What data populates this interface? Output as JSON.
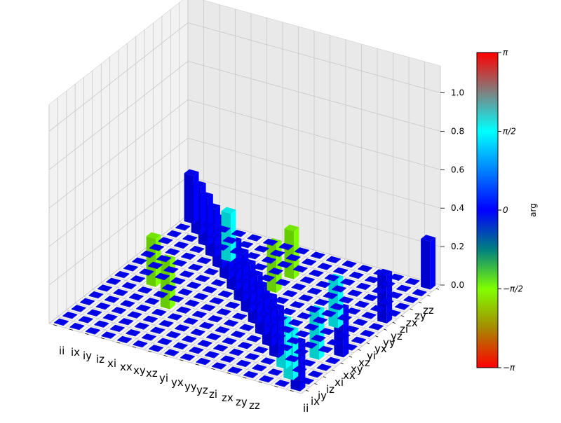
{
  "chart_data": {
    "type": "bar3d",
    "x_categories": [
      "ii",
      "ix",
      "iy",
      "iz",
      "xi",
      "xx",
      "xy",
      "xz",
      "yi",
      "yx",
      "yy",
      "yz",
      "zi",
      "zx",
      "zy",
      "zz"
    ],
    "y_categories": [
      "ii",
      "ix",
      "iy",
      "iz",
      "xi",
      "xx",
      "xy",
      "xz",
      "yi",
      "yx",
      "yy",
      "yz",
      "zi",
      "zx",
      "zy",
      "zz"
    ],
    "zlim": [
      0,
      1
    ],
    "z_ticks": [
      "0.0",
      "0.2",
      "0.4",
      "0.6",
      "0.8",
      "1.0"
    ],
    "grid": true,
    "colorbar": {
      "label": "arg",
      "ticks": [
        "π",
        "π/2",
        "0",
        "−π/2",
        "−π"
      ],
      "tick_values": [
        3.1416,
        1.5708,
        0,
        -1.5708,
        -3.1416
      ],
      "range": [
        -3.1416,
        3.1416
      ]
    },
    "default_bar": {
      "value": 0,
      "phase": 0
    },
    "bars": [
      {
        "x": "ii",
        "y": "ii",
        "value": 0.25,
        "phase": 0
      },
      {
        "x": "ix",
        "y": "ix",
        "value": 0.25,
        "phase": 1.5708
      },
      {
        "x": "iy",
        "y": "iy",
        "value": 0.25,
        "phase": 1.5708
      },
      {
        "x": "iz",
        "y": "iz",
        "value": 0.25,
        "phase": 0
      },
      {
        "x": "xi",
        "y": "xi",
        "value": 0.25,
        "phase": 0
      },
      {
        "x": "xx",
        "y": "xx",
        "value": 0.25,
        "phase": 0
      },
      {
        "x": "xy",
        "y": "xy",
        "value": 0.25,
        "phase": 0
      },
      {
        "x": "xz",
        "y": "xz",
        "value": 0.25,
        "phase": 0
      },
      {
        "x": "yi",
        "y": "yi",
        "value": 0.25,
        "phase": 0
      },
      {
        "x": "yx",
        "y": "yx",
        "value": 0.25,
        "phase": 0
      },
      {
        "x": "yy",
        "y": "yy",
        "value": 0.25,
        "phase": 0
      },
      {
        "x": "yz",
        "y": "yz",
        "value": 0.25,
        "phase": 0
      },
      {
        "x": "zi",
        "y": "zi",
        "value": 0.25,
        "phase": 0
      },
      {
        "x": "zx",
        "y": "zx",
        "value": 0.25,
        "phase": 0
      },
      {
        "x": "zy",
        "y": "zy",
        "value": 0.25,
        "phase": 0
      },
      {
        "x": "zz",
        "y": "zz",
        "value": 0.25,
        "phase": 0
      },
      {
        "x": "ii",
        "y": "xx",
        "value": 0.25,
        "phase": 0
      },
      {
        "x": "ii",
        "y": "yy",
        "value": 0.25,
        "phase": 0
      },
      {
        "x": "ii",
        "y": "zz",
        "value": 0.25,
        "phase": 0
      },
      {
        "x": "ix",
        "y": "xi",
        "value": 0.25,
        "phase": 1.5708
      },
      {
        "x": "iy",
        "y": "yi",
        "value": 0.25,
        "phase": 1.5708
      },
      {
        "x": "xz",
        "y": "yy",
        "value": 0.25,
        "phase": -1.5708
      },
      {
        "x": "xz",
        "y": "zi",
        "value": 0.25,
        "phase": -1.5708
      },
      {
        "x": "yz",
        "y": "xx",
        "value": 0.25,
        "phase": -1.5708
      },
      {
        "x": "yz",
        "y": "zi",
        "value": 0.25,
        "phase": 1.5708
      },
      {
        "x": "zx",
        "y": "xz",
        "value": 0.25,
        "phase": -1.5708
      }
    ]
  }
}
